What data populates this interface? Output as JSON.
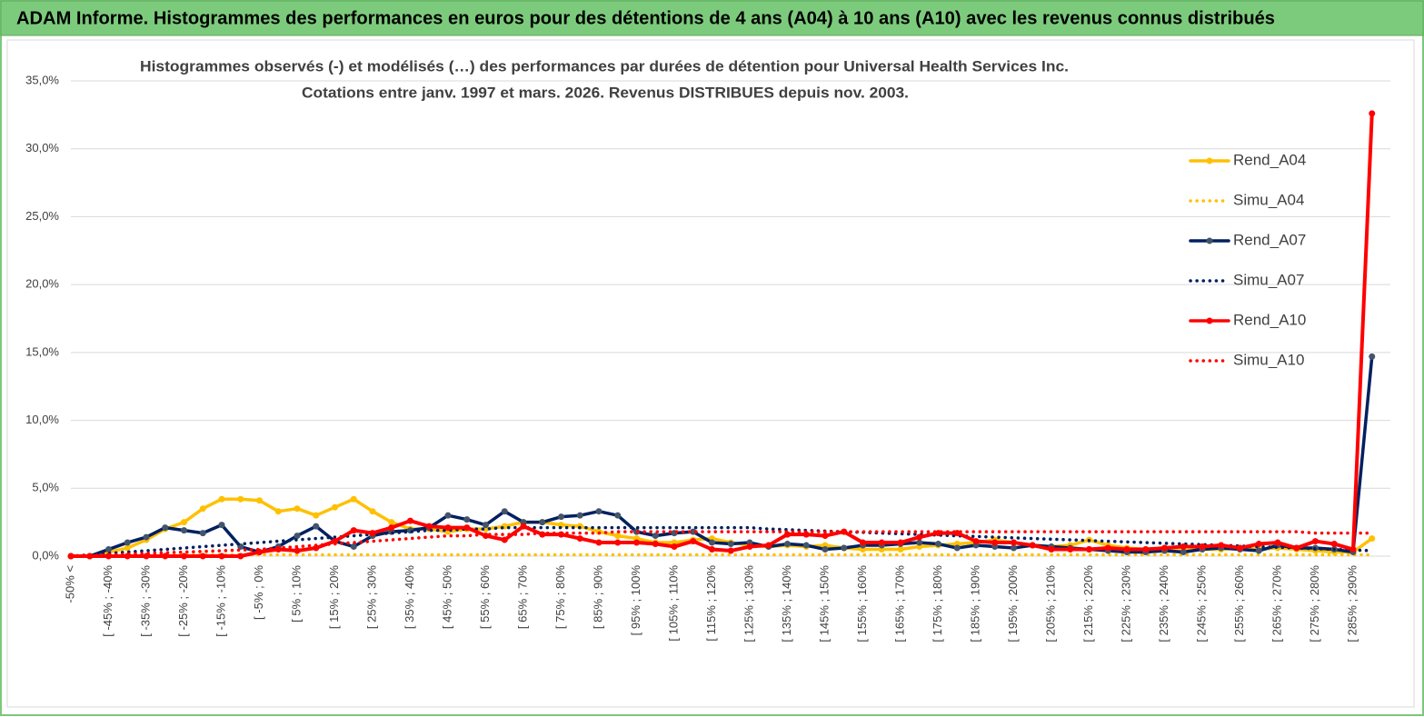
{
  "header": {
    "title": "ADAM Informe. Histogrammes des performances en euros pour des détentions de 4 ans (A04) à 10 ans (A10) avec les revenus connus distribués"
  },
  "chart_data": {
    "type": "line",
    "title": "Histogrammes observés (-) et modélisés (…) des performances par durées de détention pour Universal Health Services Inc.",
    "subtitle": "Cotations entre janv. 1997 et mars. 2026. Revenus DISTRIBUES depuis nov. 2003.",
    "categories": [
      "-50% <",
      null,
      "[ -45% ; -40%",
      null,
      "[ -35% ; -30%",
      null,
      "[ -25% ; -20%",
      null,
      "[ -15% ; -10%",
      null,
      "[ -5% ; 0%",
      null,
      "[ 5% ; 10%",
      null,
      "[ 15% ; 20%",
      null,
      "[ 25% ; 30%",
      null,
      "[ 35% ; 40%",
      null,
      "[ 45% ; 50%",
      null,
      "[ 55% ; 60%",
      null,
      "[ 65% ; 70%",
      null,
      "[ 75% ; 80%",
      null,
      "[ 85% ; 90%",
      null,
      "[ 95% ; 100%",
      null,
      "[ 105% ; 110%",
      null,
      "[ 115% ; 120%",
      null,
      "[ 125% ; 130%",
      null,
      "[ 135% ; 140%",
      null,
      "[ 145% ; 150%",
      null,
      "[ 155% ; 160%",
      null,
      "[ 165% ; 170%",
      null,
      "[ 175% ; 180%",
      null,
      "[ 185% ; 190%",
      null,
      "[ 195% ; 200%",
      null,
      "[ 205% ; 210%",
      null,
      "[ 215% ; 220%",
      null,
      "[ 225% ; 230%",
      null,
      "[ 235% ; 240%",
      null,
      "[ 245% ; 250%",
      null,
      "[ 255% ; 260%",
      null,
      "[ 265% ; 270%",
      null,
      "[ 275% ; 280%",
      null,
      "[ 285% ; 290%",
      null
    ],
    "ylim": [
      0,
      35
    ],
    "yticks": [
      {
        "value": 0,
        "label": "0,0%"
      },
      {
        "value": 5,
        "label": "5,0%"
      },
      {
        "value": 10,
        "label": "10,0%"
      },
      {
        "value": 15,
        "label": "15,0%"
      },
      {
        "value": 20,
        "label": "20,0%"
      },
      {
        "value": 25,
        "label": "25,0%"
      },
      {
        "value": 30,
        "label": "30,0%"
      },
      {
        "value": 35,
        "label": "35,0%"
      }
    ],
    "grid": true,
    "legend": "right",
    "series": [
      {
        "name": "Rend_A04",
        "color": "#ffc000",
        "style": "solid",
        "values": [
          0,
          0,
          0.3,
          0.6,
          1.2,
          2.0,
          2.5,
          3.5,
          4.2,
          4.2,
          4.1,
          3.3,
          3.5,
          3.0,
          3.6,
          4.2,
          3.3,
          2.5,
          2.0,
          2.0,
          1.8,
          2.0,
          2.0,
          2.2,
          2.5,
          2.5,
          2.3,
          2.2,
          1.8,
          1.5,
          1.3,
          1.0,
          1.0,
          1.2,
          1.3,
          1.0,
          0.8,
          0.7,
          0.8,
          0.7,
          0.8,
          0.6,
          0.5,
          0.5,
          0.5,
          0.7,
          0.8,
          0.9,
          1.0,
          1.2,
          1.0,
          0.8,
          0.7,
          0.8,
          1.2,
          0.8,
          0.6,
          0.5,
          0.4,
          0.4,
          0.5,
          0.5,
          0.6,
          0.5,
          0.6,
          0.5,
          0.4,
          0.3,
          0.3,
          1.3
        ]
      },
      {
        "name": "Simu_A04",
        "color": "#ffc000",
        "style": "dotted",
        "values": [
          0,
          0.1,
          0.1,
          0.1,
          0.1,
          0.1,
          0.1,
          0.1,
          0.1,
          0.1,
          0.1,
          0.1,
          0.1,
          0.1,
          0.1,
          0.1,
          0.1,
          0.1,
          0.1,
          0.1,
          0.1,
          0.1,
          0.1,
          0.1,
          0.1,
          0.1,
          0.1,
          0.1,
          0.1,
          0.1,
          0.1,
          0.1,
          0.1,
          0.1,
          0.1,
          0.1,
          0.1,
          0.1,
          0.1,
          0.1,
          0.1,
          0.1,
          0.1,
          0.1,
          0.1,
          0.1,
          0.1,
          0.1,
          0.1,
          0.1,
          0.1,
          0.1,
          0.1,
          0.1,
          0.1,
          0.1,
          0.1,
          0.1,
          0.1,
          0.1,
          0.1,
          0.1,
          0.1,
          0.1,
          0.1,
          0.1,
          0.1,
          0.1,
          0.1,
          0.1
        ]
      },
      {
        "name": "Rend_A07",
        "color": "#002060",
        "style": "solid",
        "values": [
          0,
          0,
          0.5,
          1.0,
          1.4,
          2.1,
          1.9,
          1.7,
          2.3,
          0.7,
          0.3,
          0.7,
          1.5,
          2.2,
          1.1,
          0.7,
          1.5,
          1.8,
          1.9,
          2.1,
          3.0,
          2.7,
          2.3,
          3.3,
          2.5,
          2.5,
          2.9,
          3.0,
          3.3,
          3.0,
          1.8,
          1.5,
          1.7,
          1.8,
          1.0,
          0.9,
          1.0,
          0.7,
          0.9,
          0.8,
          0.5,
          0.6,
          0.8,
          0.8,
          0.9,
          1.0,
          0.9,
          0.6,
          0.8,
          0.7,
          0.6,
          0.8,
          0.7,
          0.6,
          0.5,
          0.4,
          0.3,
          0.3,
          0.4,
          0.3,
          0.5,
          0.6,
          0.5,
          0.4,
          0.8,
          0.6,
          0.6,
          0.5,
          0.3,
          14.7
        ]
      },
      {
        "name": "Simu_A07",
        "color": "#002060",
        "style": "dotted",
        "values": [
          0,
          0.1,
          0.2,
          0.3,
          0.4,
          0.5,
          0.6,
          0.7,
          0.8,
          0.9,
          1.0,
          1.1,
          1.2,
          1.3,
          1.4,
          1.5,
          1.6,
          1.7,
          1.8,
          1.9,
          1.9,
          2.0,
          2.0,
          2.1,
          2.1,
          2.1,
          2.1,
          2.1,
          2.1,
          2.1,
          2.1,
          2.1,
          2.1,
          2.1,
          2.1,
          2.1,
          2.1,
          2.0,
          1.95,
          1.9,
          1.85,
          1.8,
          1.75,
          1.7,
          1.65,
          1.6,
          1.55,
          1.5,
          1.45,
          1.4,
          1.35,
          1.3,
          1.25,
          1.2,
          1.15,
          1.1,
          1.05,
          1.0,
          0.95,
          0.9,
          0.85,
          0.8,
          0.75,
          0.7,
          0.65,
          0.6,
          0.55,
          0.5,
          0.45,
          0.4
        ]
      },
      {
        "name": "Rend_A10",
        "color": "#ff0000",
        "style": "solid",
        "values": [
          0,
          0,
          0,
          0,
          0,
          0,
          0,
          0,
          0,
          0,
          0.3,
          0.5,
          0.4,
          0.6,
          1.1,
          1.9,
          1.7,
          2.1,
          2.6,
          2.2,
          2.1,
          2.1,
          1.5,
          1.2,
          2.2,
          1.6,
          1.6,
          1.3,
          1.0,
          1.0,
          1.0,
          0.9,
          0.7,
          1.1,
          0.5,
          0.4,
          0.7,
          0.8,
          1.6,
          1.6,
          1.5,
          1.8,
          1.0,
          1.0,
          1.0,
          1.4,
          1.7,
          1.7,
          1.1,
          1.0,
          1.0,
          0.8,
          0.5,
          0.5,
          0.5,
          0.6,
          0.5,
          0.5,
          0.6,
          0.7,
          0.7,
          0.8,
          0.6,
          0.9,
          1.0,
          0.6,
          1.1,
          0.9,
          0.5,
          32.6
        ]
      },
      {
        "name": "Simu_A10",
        "color": "#ff0000",
        "style": "dotted",
        "values": [
          0,
          0.05,
          0.1,
          0.15,
          0.2,
          0.25,
          0.3,
          0.35,
          0.4,
          0.45,
          0.5,
          0.6,
          0.7,
          0.8,
          0.9,
          1.0,
          1.1,
          1.2,
          1.3,
          1.4,
          1.5,
          1.5,
          1.6,
          1.6,
          1.6,
          1.7,
          1.7,
          1.7,
          1.7,
          1.8,
          1.8,
          1.8,
          1.8,
          1.8,
          1.8,
          1.8,
          1.8,
          1.8,
          1.8,
          1.8,
          1.8,
          1.8,
          1.8,
          1.8,
          1.8,
          1.8,
          1.8,
          1.8,
          1.8,
          1.8,
          1.8,
          1.8,
          1.8,
          1.8,
          1.8,
          1.8,
          1.8,
          1.8,
          1.8,
          1.8,
          1.8,
          1.8,
          1.8,
          1.8,
          1.8,
          1.8,
          1.7,
          1.7,
          1.7,
          1.7
        ]
      }
    ]
  }
}
